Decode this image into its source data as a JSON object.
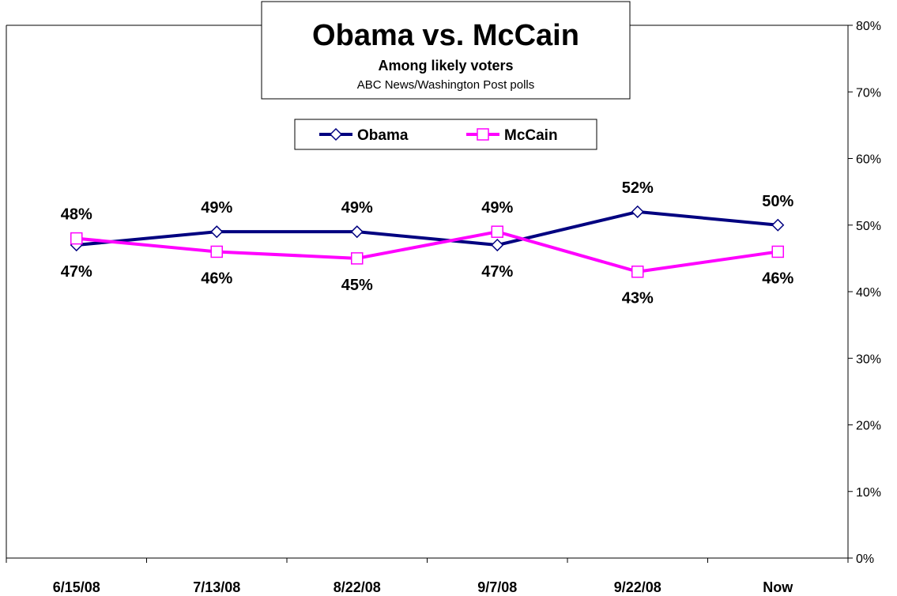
{
  "chart_data": {
    "type": "line",
    "title": "Obama vs. McCain",
    "subtitle": "Among likely voters",
    "source": "ABC News/Washington Post polls",
    "categories": [
      "6/15/08",
      "7/13/08",
      "8/22/08",
      "9/7/08",
      "9/22/08",
      "Now"
    ],
    "ylim": [
      0,
      80
    ],
    "yticks": [
      "0%",
      "10%",
      "20%",
      "30%",
      "40%",
      "50%",
      "60%",
      "70%",
      "80%"
    ],
    "y_axis_position": "right",
    "grid": false,
    "legend_position": "top-center",
    "series": [
      {
        "name": "Obama",
        "color": "#000080",
        "marker": "diamond",
        "values": [
          47,
          49,
          49,
          47,
          52,
          50
        ],
        "labels": [
          "47%",
          "49%",
          "49%",
          "47%",
          "52%",
          "50%"
        ]
      },
      {
        "name": "McCain",
        "color": "#FF00FF",
        "marker": "square",
        "values": [
          48,
          46,
          45,
          49,
          43,
          46
        ],
        "labels": [
          "48%",
          "46%",
          "45%",
          "49%",
          "43%",
          "46%"
        ]
      }
    ]
  }
}
